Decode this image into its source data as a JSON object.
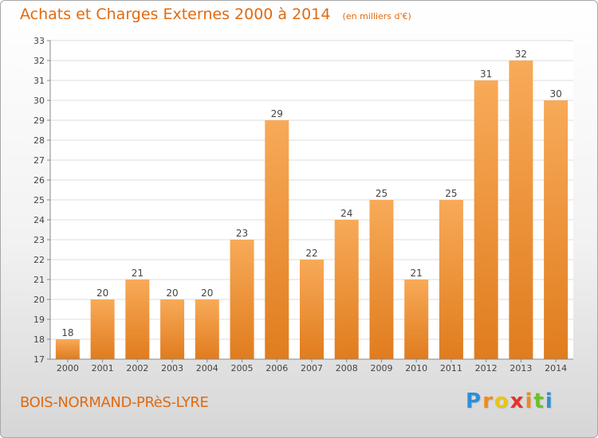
{
  "title": "Achats et Charges Externes 2000 à 2014",
  "unit": "(en milliers d'€)",
  "commune": "BOIS-NORMAND-PRèS-LYRE",
  "logo": {
    "letters": [
      "P",
      "r",
      "o",
      "x",
      "i",
      "t",
      "i"
    ],
    "colors": [
      "#2d8fd6",
      "#f08a1c",
      "#e8c41a",
      "#e53030",
      "#f08a1c",
      "#6bbf2a",
      "#2d8fd6"
    ]
  },
  "colors": {
    "accent": "#e06a10",
    "bar_light": "#f8aa58",
    "bar_dark": "#e07c1e",
    "grid": "#dcdcdc"
  },
  "chart_data": {
    "type": "bar",
    "categories": [
      "2000",
      "2001",
      "2002",
      "2003",
      "2004",
      "2005",
      "2006",
      "2007",
      "2008",
      "2009",
      "2010",
      "2011",
      "2012",
      "2013",
      "2014"
    ],
    "values": [
      18,
      20,
      21,
      20,
      20,
      23,
      29,
      22,
      24,
      25,
      21,
      25,
      31,
      32,
      30
    ],
    "ylim": [
      17,
      33
    ],
    "yticks": [
      17,
      18,
      19,
      20,
      21,
      22,
      23,
      24,
      25,
      26,
      27,
      28,
      29,
      30,
      31,
      32,
      33
    ],
    "grid": true,
    "xlabel": "",
    "ylabel": ""
  }
}
